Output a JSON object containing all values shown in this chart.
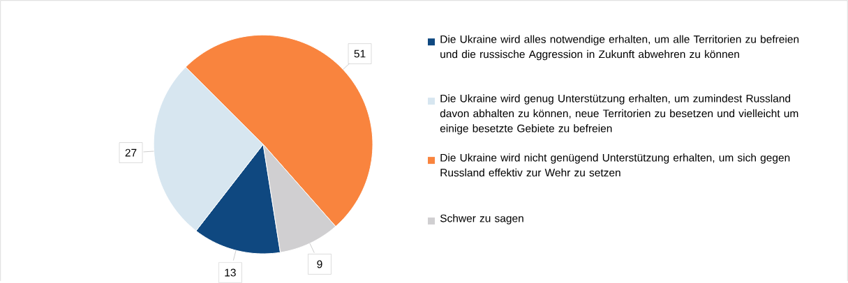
{
  "chart_data": {
    "type": "pie",
    "categories": [
      "Die Ukraine wird alles notwendige erhalten, um alle Territorien zu befreien und die russische Aggression in Zukunft abwehren zu können",
      "Die Ukraine wird genug Unterstützung erhalten, um zumindest Russland davon abhalten zu können, neue Territorien zu besetzen und vielleicht um einige besetzte Gebiete zu befreien",
      "Die Ukraine wird nicht genügend Unterstützung erhalten, um sich gegen Russland effektiv zur Wehr zu setzen",
      "Schwer zu sagen"
    ],
    "values": [
      13,
      27,
      51,
      9
    ],
    "colors": [
      "#0f4880",
      "#d7e6f0",
      "#f9843e",
      "#d0cfd1"
    ],
    "data_labels": true,
    "legend": "right"
  }
}
